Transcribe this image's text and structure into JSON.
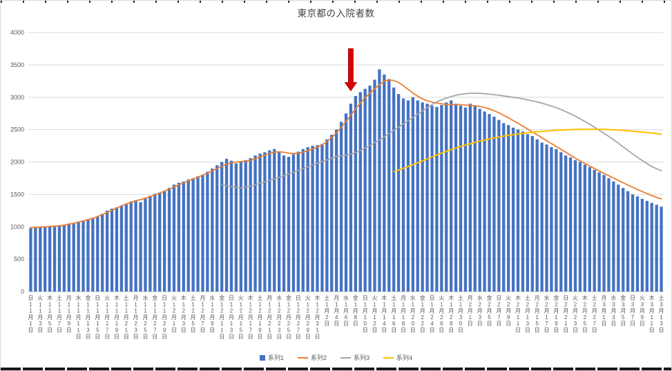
{
  "chart_data": {
    "type": "combo",
    "title": "東京都の入院者数",
    "ylim": [
      0,
      4000
    ],
    "y_ticks": [
      0,
      500,
      1000,
      1500,
      2000,
      2500,
      3000,
      3500,
      4000
    ],
    "x_label_every": 2,
    "grid": true,
    "legend_position": "bottom",
    "colors": {
      "gridline": "#D9D9D9",
      "axis_line": "#BFBFBF",
      "tick_text": "#595959",
      "title_text": "#404040"
    },
    "categories": [
      "日 11月1日",
      "月 11月2日",
      "火 11月3日",
      "水 11月4日",
      "木 11月5日",
      "金 11月6日",
      "土 11月7日",
      "日 11月8日",
      "月 11月9日",
      "火 11月10日",
      "水 11月11日",
      "木 11月12日",
      "金 11月13日",
      "土 11月14日",
      "日 11月15日",
      "月 11月16日",
      "火 11月17日",
      "水 11月18日",
      "木 11月19日",
      "金 11月20日",
      "土 11月21日",
      "日 11月22日",
      "月 11月23日",
      "火 11月24日",
      "水 11月25日",
      "木 11月26日",
      "金 11月27日",
      "土 11月28日",
      "日 11月29日",
      "月 11月30日",
      "火 12月1日",
      "水 12月2日",
      "木 12月3日",
      "金 12月4日",
      "土 12月5日",
      "日 12月6日",
      "月 12月7日",
      "火 12月8日",
      "水 12月9日",
      "木 12月10日",
      "金 12月11日",
      "土 12月12日",
      "日 12月13日",
      "月 12月14日",
      "火 12月15日",
      "水 12月16日",
      "木 12月17日",
      "金 12月18日",
      "土 12月19日",
      "日 12月20日",
      "月 12月21日",
      "火 12月22日",
      "水 12月23日",
      "木 12月24日",
      "金 12月25日",
      "土 12月26日",
      "日 12月27日",
      "月 12月28日",
      "火 12月29日",
      "水 12月30日",
      "木 12月31日",
      "金 1月1日",
      "土 1月2日",
      "日 1月3日",
      "月 1月4日",
      "火 1月5日",
      "水 1月6日",
      "木 1月7日",
      "金 1月8日",
      "土 1月9日",
      "日 1月10日",
      "月 1月11日",
      "火 1月12日",
      "水 1月13日",
      "木 1月14日",
      "金 1月15日",
      "土 1月16日",
      "日 1月17日",
      "月 1月18日",
      "火 1月19日",
      "水 1月20日",
      "木 1月21日",
      "金 1月22日",
      "土 1月23日",
      "日 1月24日",
      "月 1月25日",
      "火 1月26日",
      "水 1月27日",
      "木 1月28日",
      "金 1月29日",
      "土 1月30日",
      "日 1月31日",
      "月 2月1日",
      "火 2月2日",
      "水 2月3日",
      "木 2月4日",
      "金 2月5日",
      "土 2月6日",
      "日 2月7日",
      "月 2月8日",
      "火 2月9日",
      "水 2月10日",
      "木 2月11日",
      "金 2月12日",
      "土 2月13日",
      "日 2月14日",
      "月 2月15日",
      "火 2月16日",
      "水 2月17日",
      "木 2月18日",
      "金 2月19日",
      "土 2月20日",
      "日 2月21日",
      "月 2月22日",
      "火 2月23日",
      "水 2月24日",
      "木 2月25日",
      "金 2月26日",
      "土 2月27日",
      "日 2月28日",
      "月 3月1日",
      "火 3月2日",
      "水 3月3日",
      "木 3月4日",
      "金 3月5日",
      "土 3月6日",
      "日 3月7日",
      "月 3月8日",
      "火 3月9日",
      "水 3月10日",
      "木 3月11日",
      "金 3月12日",
      "土 3月13日"
    ],
    "series": [
      {
        "name": "系列1",
        "type": "bar",
        "color": "#4472C4",
        "start_index": 0,
        "values": [
          980,
          1000,
          990,
          1005,
          1010,
          1000,
          1020,
          1030,
          1050,
          1060,
          1080,
          1100,
          1120,
          1130,
          1160,
          1200,
          1250,
          1280,
          1300,
          1330,
          1360,
          1390,
          1410,
          1380,
          1450,
          1480,
          1510,
          1530,
          1560,
          1600,
          1650,
          1680,
          1700,
          1730,
          1750,
          1780,
          1800,
          1850,
          1900,
          1950,
          2000,
          2050,
          2020,
          1980,
          2000,
          2030,
          2060,
          2100,
          2130,
          2150,
          2180,
          2200,
          2150,
          2100,
          2080,
          2120,
          2160,
          2200,
          2230,
          2250,
          2260,
          2280,
          2350,
          2420,
          2500,
          2620,
          2750,
          2900,
          3020,
          3080,
          3130,
          3180,
          3270,
          3430,
          3350,
          3280,
          3150,
          3050,
          2980,
          2950,
          3000,
          2950,
          2920,
          2900,
          2870,
          2850,
          2880,
          2920,
          2950,
          2900,
          2870,
          2840,
          2900,
          2870,
          2820,
          2780,
          2740,
          2700,
          2650,
          2600,
          2570,
          2530,
          2500,
          2470,
          2430,
          2400,
          2350,
          2300,
          2270,
          2230,
          2200,
          2150,
          2100,
          2070,
          2030,
          2000,
          1960,
          1920,
          1880,
          1840,
          1800,
          1750,
          1700,
          1650,
          1600,
          1550,
          1500,
          1470,
          1430,
          1400,
          1370,
          1340,
          1310
        ]
      },
      {
        "name": "系列2",
        "type": "line",
        "color": "#ED7D31",
        "start_index": 0,
        "values": [
          985,
          990,
          995,
          1000,
          1005,
          1010,
          1015,
          1025,
          1040,
          1055,
          1072,
          1090,
          1110,
          1132,
          1158,
          1188,
          1222,
          1256,
          1290,
          1322,
          1352,
          1380,
          1402,
          1420,
          1440,
          1465,
          1492,
          1520,
          1550,
          1582,
          1615,
          1648,
          1678,
          1708,
          1738,
          1768,
          1798,
          1830,
          1865,
          1900,
          1935,
          1965,
          1988,
          2000,
          2005,
          2012,
          2028,
          2052,
          2080,
          2108,
          2132,
          2152,
          2158,
          2150,
          2138,
          2130,
          2135,
          2152,
          2175,
          2202,
          2230,
          2265,
          2315,
          2378,
          2452,
          2535,
          2625,
          2722,
          2820,
          2912,
          2995,
          3065,
          3130,
          3195,
          3248,
          3268,
          3258,
          3228,
          3180,
          3122,
          3065,
          3015,
          2975,
          2945,
          2925,
          2910,
          2898,
          2890,
          2888,
          2888,
          2885,
          2880,
          2875,
          2868,
          2858,
          2842,
          2820,
          2792,
          2760,
          2722,
          2682,
          2640,
          2598,
          2555,
          2510,
          2465,
          2420,
          2375,
          2330,
          2285,
          2240,
          2195,
          2150,
          2105,
          2060,
          2018,
          1978,
          1938,
          1900,
          1862,
          1825,
          1788,
          1752,
          1716,
          1680,
          1645,
          1610,
          1576,
          1543,
          1512,
          1482,
          1455,
          1430
        ]
      },
      {
        "name": "系列3",
        "type": "line",
        "color": "#A5A5A5",
        "start_index": 40,
        "values": [
          1650,
          1635,
          1620,
          1608,
          1600,
          1612,
          1628,
          1648,
          1670,
          1692,
          1715,
          1738,
          1762,
          1788,
          1815,
          1842,
          1870,
          1898,
          1925,
          1952,
          1978,
          2005,
          2032,
          2058,
          2082,
          2095,
          2105,
          2118,
          2145,
          2175,
          2215,
          2255,
          2298,
          2340,
          2388,
          2438,
          2488,
          2538,
          2588,
          2638,
          2688,
          2738,
          2788,
          2838,
          2888,
          2928,
          2960,
          2988,
          3010,
          3030,
          3045,
          3055,
          3060,
          3062,
          3060,
          3055,
          3048,
          3040,
          3030,
          3020,
          3010,
          3000,
          2990,
          2976,
          2960,
          2944,
          2928,
          2908,
          2888,
          2864,
          2840,
          2810,
          2778,
          2744,
          2708,
          2668,
          2626,
          2583,
          2538,
          2492,
          2444,
          2395,
          2344,
          2290,
          2235,
          2180,
          2125,
          2072,
          2022,
          1975,
          1932,
          1896,
          1868
        ]
      },
      {
        "name": "系列4",
        "type": "line",
        "color": "#FFC000",
        "start_index": 76,
        "values": [
          1850,
          1876,
          1902,
          1930,
          1958,
          1988,
          2018,
          2048,
          2078,
          2108,
          2138,
          2164,
          2190,
          2215,
          2240,
          2262,
          2282,
          2302,
          2322,
          2340,
          2356,
          2372,
          2386,
          2400,
          2412,
          2422,
          2432,
          2442,
          2450,
          2458,
          2466,
          2472,
          2478,
          2484,
          2490,
          2494,
          2497,
          2500,
          2502,
          2504,
          2505,
          2506,
          2506,
          2505,
          2503,
          2500,
          2497,
          2493,
          2488,
          2482,
          2476,
          2469,
          2462,
          2455,
          2447,
          2439,
          2430
        ]
      }
    ],
    "annotation": {
      "shape": "down-arrow",
      "category": "木 1月7日",
      "category_index": 67,
      "from_value": 3750,
      "to_value": 3100,
      "color": "#D90000",
      "border_color": "#9C0006"
    }
  }
}
